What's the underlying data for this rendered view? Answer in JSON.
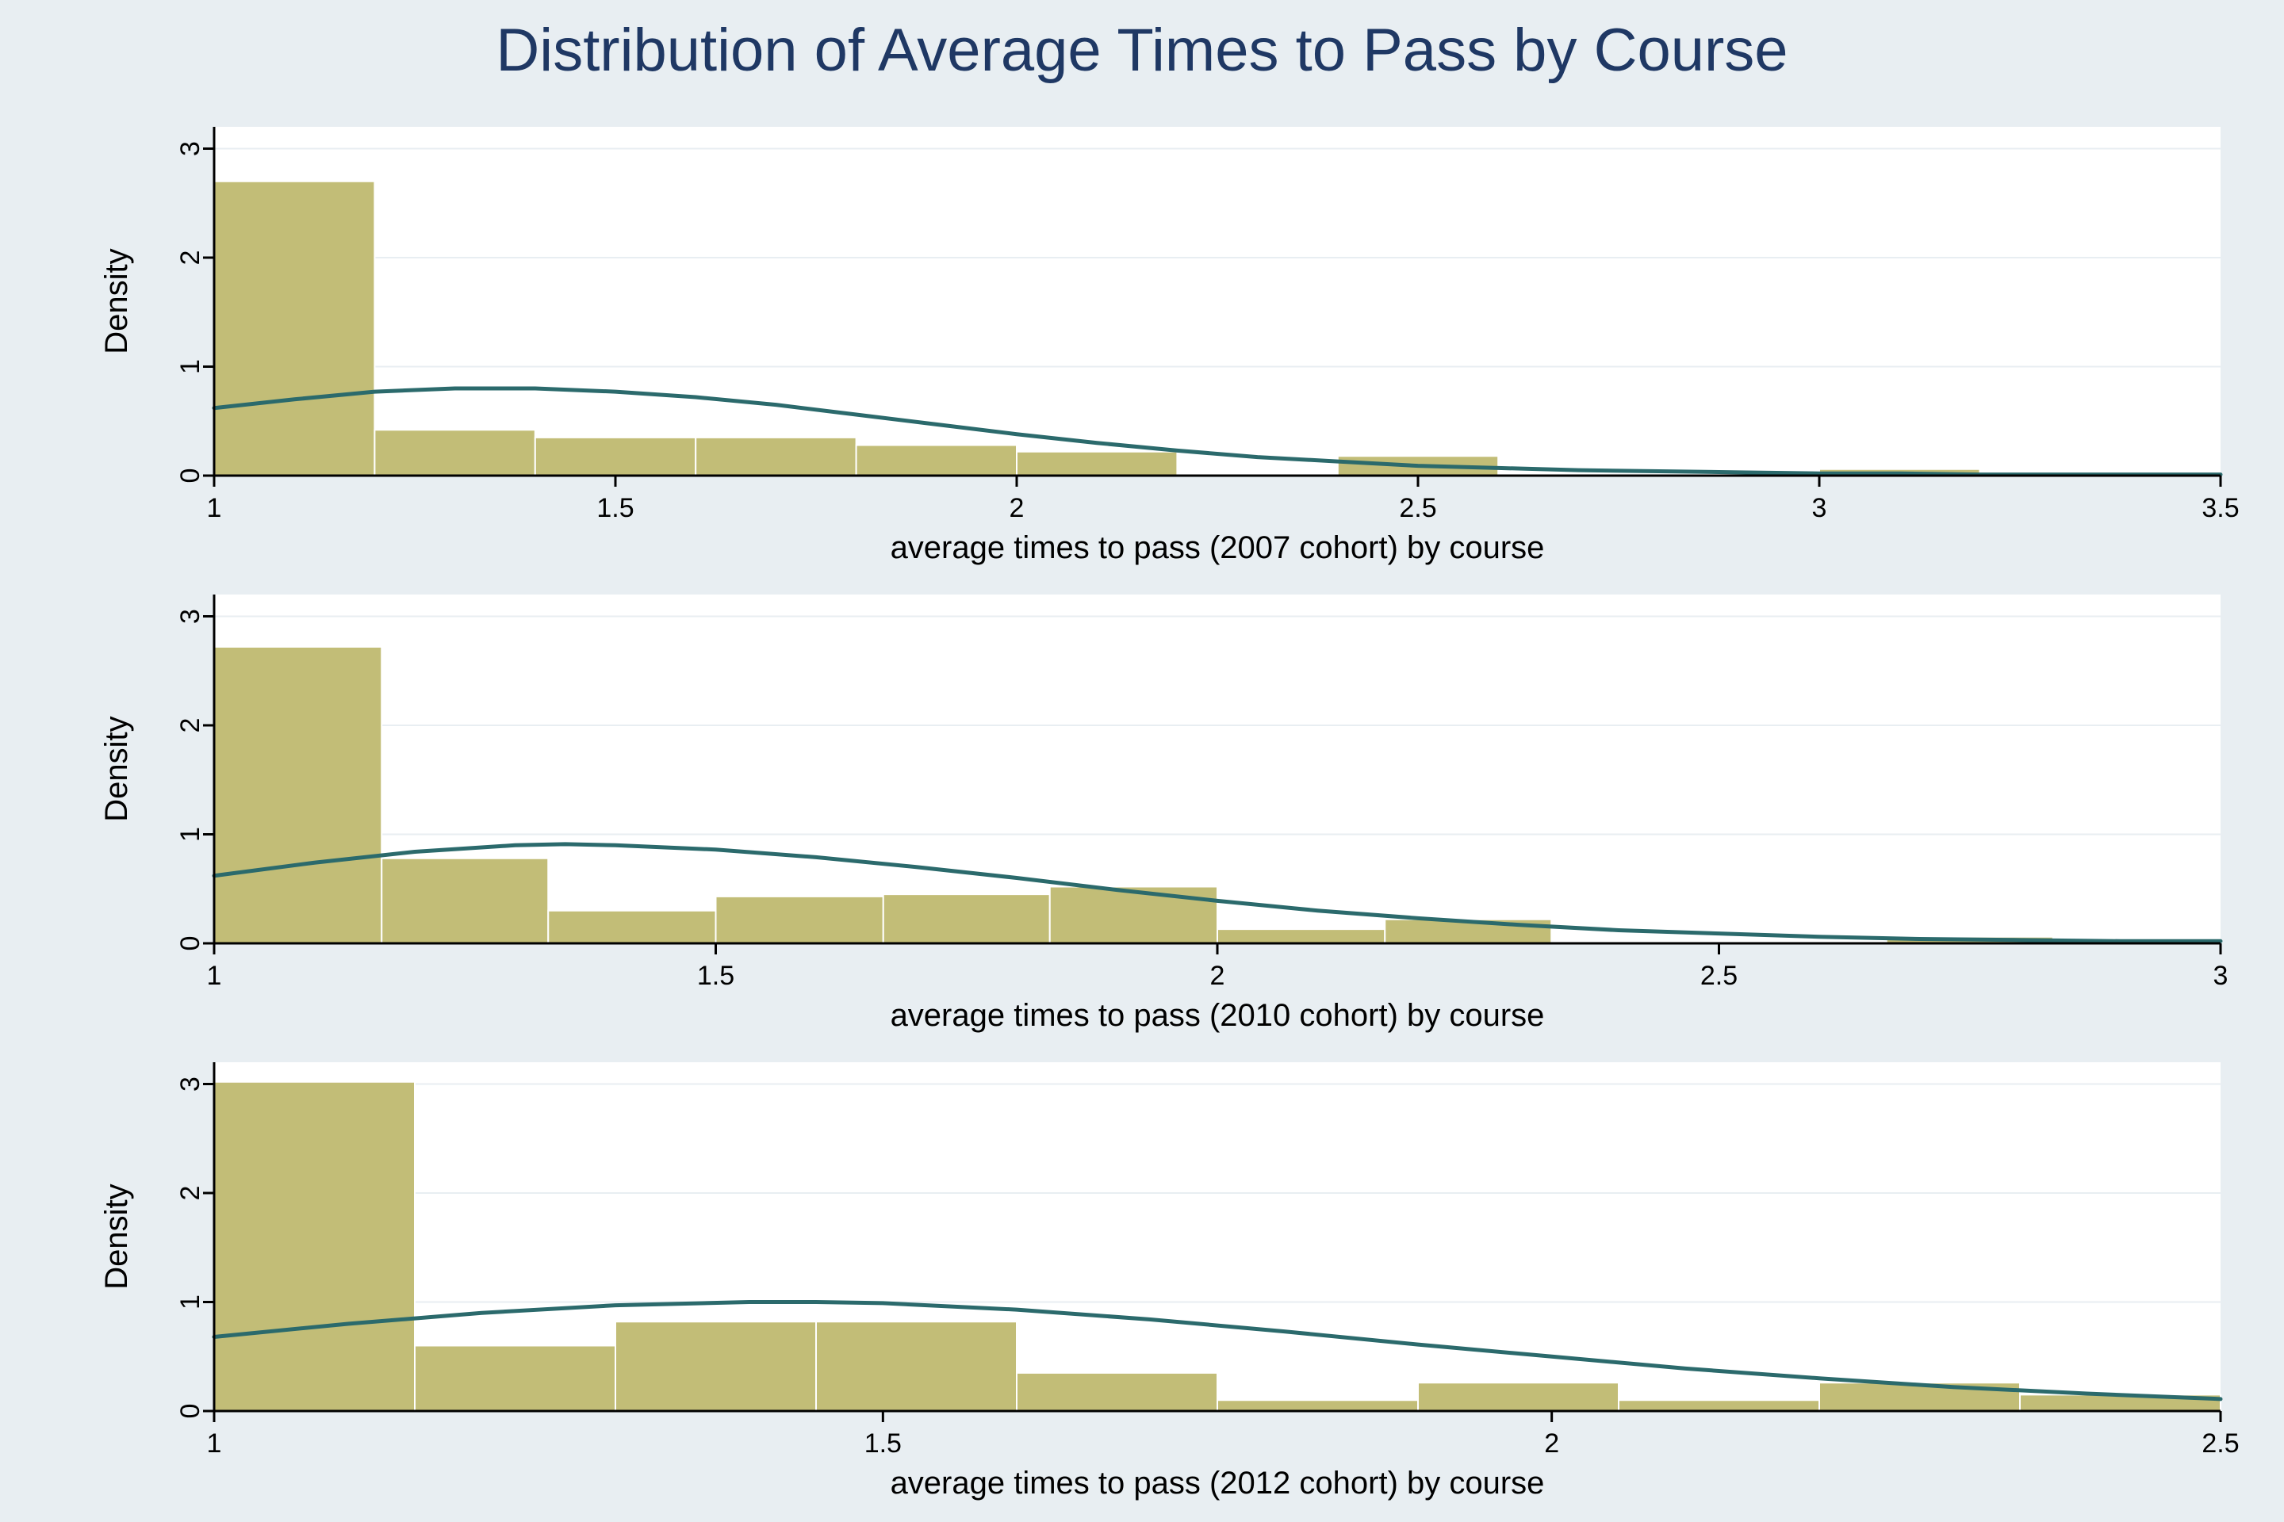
{
  "title": "Distribution of Average Times to Pass by Course",
  "title_color": "#1f3864",
  "background_color": "#e8eef2",
  "plot_background": "#ffffff",
  "bar_fill": "#c2bd77",
  "bar_stroke": "#c2bd77",
  "curve_color": "#2b6a6c",
  "axis_color": "#000000",
  "grid_color": "#e8eef2",
  "tick_font_size": 34,
  "axis_title_font_size": 40,
  "panels": [
    {
      "xlabel": "average times to pass (2007 cohort) by course",
      "ylabel": "Density",
      "xlim": [
        1.0,
        3.5
      ],
      "xticks": [
        1,
        1.5,
        2,
        2.5,
        3,
        3.5
      ],
      "ylim": [
        0,
        3.2
      ],
      "yticks": [
        0,
        1,
        2,
        3
      ],
      "bars": [
        {
          "x0": 1.0,
          "x1": 1.2,
          "h": 2.7
        },
        {
          "x0": 1.2,
          "x1": 1.4,
          "h": 0.42
        },
        {
          "x0": 1.4,
          "x1": 1.6,
          "h": 0.35
        },
        {
          "x0": 1.6,
          "x1": 1.8,
          "h": 0.35
        },
        {
          "x0": 1.8,
          "x1": 2.0,
          "h": 0.28
        },
        {
          "x0": 2.0,
          "x1": 2.2,
          "h": 0.22
        },
        {
          "x0": 2.2,
          "x1": 2.4,
          "h": 0.0
        },
        {
          "x0": 2.4,
          "x1": 2.6,
          "h": 0.18
        },
        {
          "x0": 2.6,
          "x1": 2.8,
          "h": 0.0
        },
        {
          "x0": 2.8,
          "x1": 3.0,
          "h": 0.0
        },
        {
          "x0": 3.0,
          "x1": 3.2,
          "h": 0.06
        }
      ],
      "curve": [
        {
          "x": 1.0,
          "y": 0.62
        },
        {
          "x": 1.1,
          "y": 0.7
        },
        {
          "x": 1.2,
          "y": 0.77
        },
        {
          "x": 1.3,
          "y": 0.8
        },
        {
          "x": 1.4,
          "y": 0.8
        },
        {
          "x": 1.5,
          "y": 0.77
        },
        {
          "x": 1.6,
          "y": 0.72
        },
        {
          "x": 1.7,
          "y": 0.65
        },
        {
          "x": 1.8,
          "y": 0.56
        },
        {
          "x": 1.9,
          "y": 0.47
        },
        {
          "x": 2.0,
          "y": 0.38
        },
        {
          "x": 2.1,
          "y": 0.3
        },
        {
          "x": 2.2,
          "y": 0.23
        },
        {
          "x": 2.3,
          "y": 0.17
        },
        {
          "x": 2.4,
          "y": 0.13
        },
        {
          "x": 2.5,
          "y": 0.09
        },
        {
          "x": 2.6,
          "y": 0.07
        },
        {
          "x": 2.7,
          "y": 0.05
        },
        {
          "x": 2.8,
          "y": 0.04
        },
        {
          "x": 2.9,
          "y": 0.03
        },
        {
          "x": 3.0,
          "y": 0.02
        },
        {
          "x": 3.1,
          "y": 0.02
        },
        {
          "x": 3.2,
          "y": 0.01
        },
        {
          "x": 3.3,
          "y": 0.01
        },
        {
          "x": 3.4,
          "y": 0.01
        },
        {
          "x": 3.5,
          "y": 0.01
        }
      ]
    },
    {
      "xlabel": "average times to pass (2010 cohort) by course",
      "ylabel": "Density",
      "xlim": [
        1.0,
        3.0
      ],
      "xticks": [
        1,
        1.5,
        2,
        2.5,
        3
      ],
      "ylim": [
        0,
        3.2
      ],
      "yticks": [
        0,
        1,
        2,
        3
      ],
      "bars": [
        {
          "x0": 1.0,
          "x1": 1.167,
          "h": 2.72
        },
        {
          "x0": 1.167,
          "x1": 1.333,
          "h": 0.78
        },
        {
          "x0": 1.333,
          "x1": 1.5,
          "h": 0.3
        },
        {
          "x0": 1.5,
          "x1": 1.667,
          "h": 0.43
        },
        {
          "x0": 1.667,
          "x1": 1.833,
          "h": 0.45
        },
        {
          "x0": 1.833,
          "x1": 2.0,
          "h": 0.52
        },
        {
          "x0": 2.0,
          "x1": 2.167,
          "h": 0.13
        },
        {
          "x0": 2.167,
          "x1": 2.333,
          "h": 0.22
        },
        {
          "x0": 2.333,
          "x1": 2.5,
          "h": 0.0
        },
        {
          "x0": 2.5,
          "x1": 2.667,
          "h": 0.0
        },
        {
          "x0": 2.667,
          "x1": 2.833,
          "h": 0.06
        }
      ],
      "curve": [
        {
          "x": 1.0,
          "y": 0.62
        },
        {
          "x": 1.1,
          "y": 0.74
        },
        {
          "x": 1.2,
          "y": 0.84
        },
        {
          "x": 1.3,
          "y": 0.9
        },
        {
          "x": 1.35,
          "y": 0.91
        },
        {
          "x": 1.4,
          "y": 0.9
        },
        {
          "x": 1.5,
          "y": 0.86
        },
        {
          "x": 1.6,
          "y": 0.79
        },
        {
          "x": 1.7,
          "y": 0.7
        },
        {
          "x": 1.8,
          "y": 0.6
        },
        {
          "x": 1.9,
          "y": 0.49
        },
        {
          "x": 2.0,
          "y": 0.39
        },
        {
          "x": 2.1,
          "y": 0.3
        },
        {
          "x": 2.2,
          "y": 0.23
        },
        {
          "x": 2.3,
          "y": 0.17
        },
        {
          "x": 2.4,
          "y": 0.12
        },
        {
          "x": 2.5,
          "y": 0.09
        },
        {
          "x": 2.6,
          "y": 0.06
        },
        {
          "x": 2.7,
          "y": 0.04
        },
        {
          "x": 2.8,
          "y": 0.03
        },
        {
          "x": 2.9,
          "y": 0.02
        },
        {
          "x": 3.0,
          "y": 0.02
        }
      ]
    },
    {
      "xlabel": "average times to pass (2012 cohort) by course",
      "ylabel": "Density",
      "xlim": [
        1.0,
        2.5
      ],
      "xticks": [
        1,
        1.5,
        2,
        2.5
      ],
      "ylim": [
        0,
        3.2
      ],
      "yticks": [
        0,
        1,
        2,
        3
      ],
      "bars": [
        {
          "x0": 1.0,
          "x1": 1.15,
          "h": 3.02
        },
        {
          "x0": 1.15,
          "x1": 1.3,
          "h": 0.6
        },
        {
          "x0": 1.3,
          "x1": 1.45,
          "h": 0.82
        },
        {
          "x0": 1.45,
          "x1": 1.6,
          "h": 0.82
        },
        {
          "x0": 1.6,
          "x1": 1.75,
          "h": 0.35
        },
        {
          "x0": 1.75,
          "x1": 1.9,
          "h": 0.1
        },
        {
          "x0": 1.9,
          "x1": 2.05,
          "h": 0.26
        },
        {
          "x0": 2.05,
          "x1": 2.2,
          "h": 0.1
        },
        {
          "x0": 2.2,
          "x1": 2.35,
          "h": 0.26
        },
        {
          "x0": 2.35,
          "x1": 2.5,
          "h": 0.15
        }
      ],
      "curve": [
        {
          "x": 1.0,
          "y": 0.68
        },
        {
          "x": 1.1,
          "y": 0.8
        },
        {
          "x": 1.2,
          "y": 0.9
        },
        {
          "x": 1.3,
          "y": 0.97
        },
        {
          "x": 1.4,
          "y": 1.0
        },
        {
          "x": 1.45,
          "y": 1.0
        },
        {
          "x": 1.5,
          "y": 0.99
        },
        {
          "x": 1.6,
          "y": 0.93
        },
        {
          "x": 1.7,
          "y": 0.84
        },
        {
          "x": 1.8,
          "y": 0.73
        },
        {
          "x": 1.9,
          "y": 0.61
        },
        {
          "x": 2.0,
          "y": 0.5
        },
        {
          "x": 2.1,
          "y": 0.39
        },
        {
          "x": 2.2,
          "y": 0.3
        },
        {
          "x": 2.3,
          "y": 0.22
        },
        {
          "x": 2.4,
          "y": 0.16
        },
        {
          "x": 2.5,
          "y": 0.11
        }
      ]
    }
  ]
}
